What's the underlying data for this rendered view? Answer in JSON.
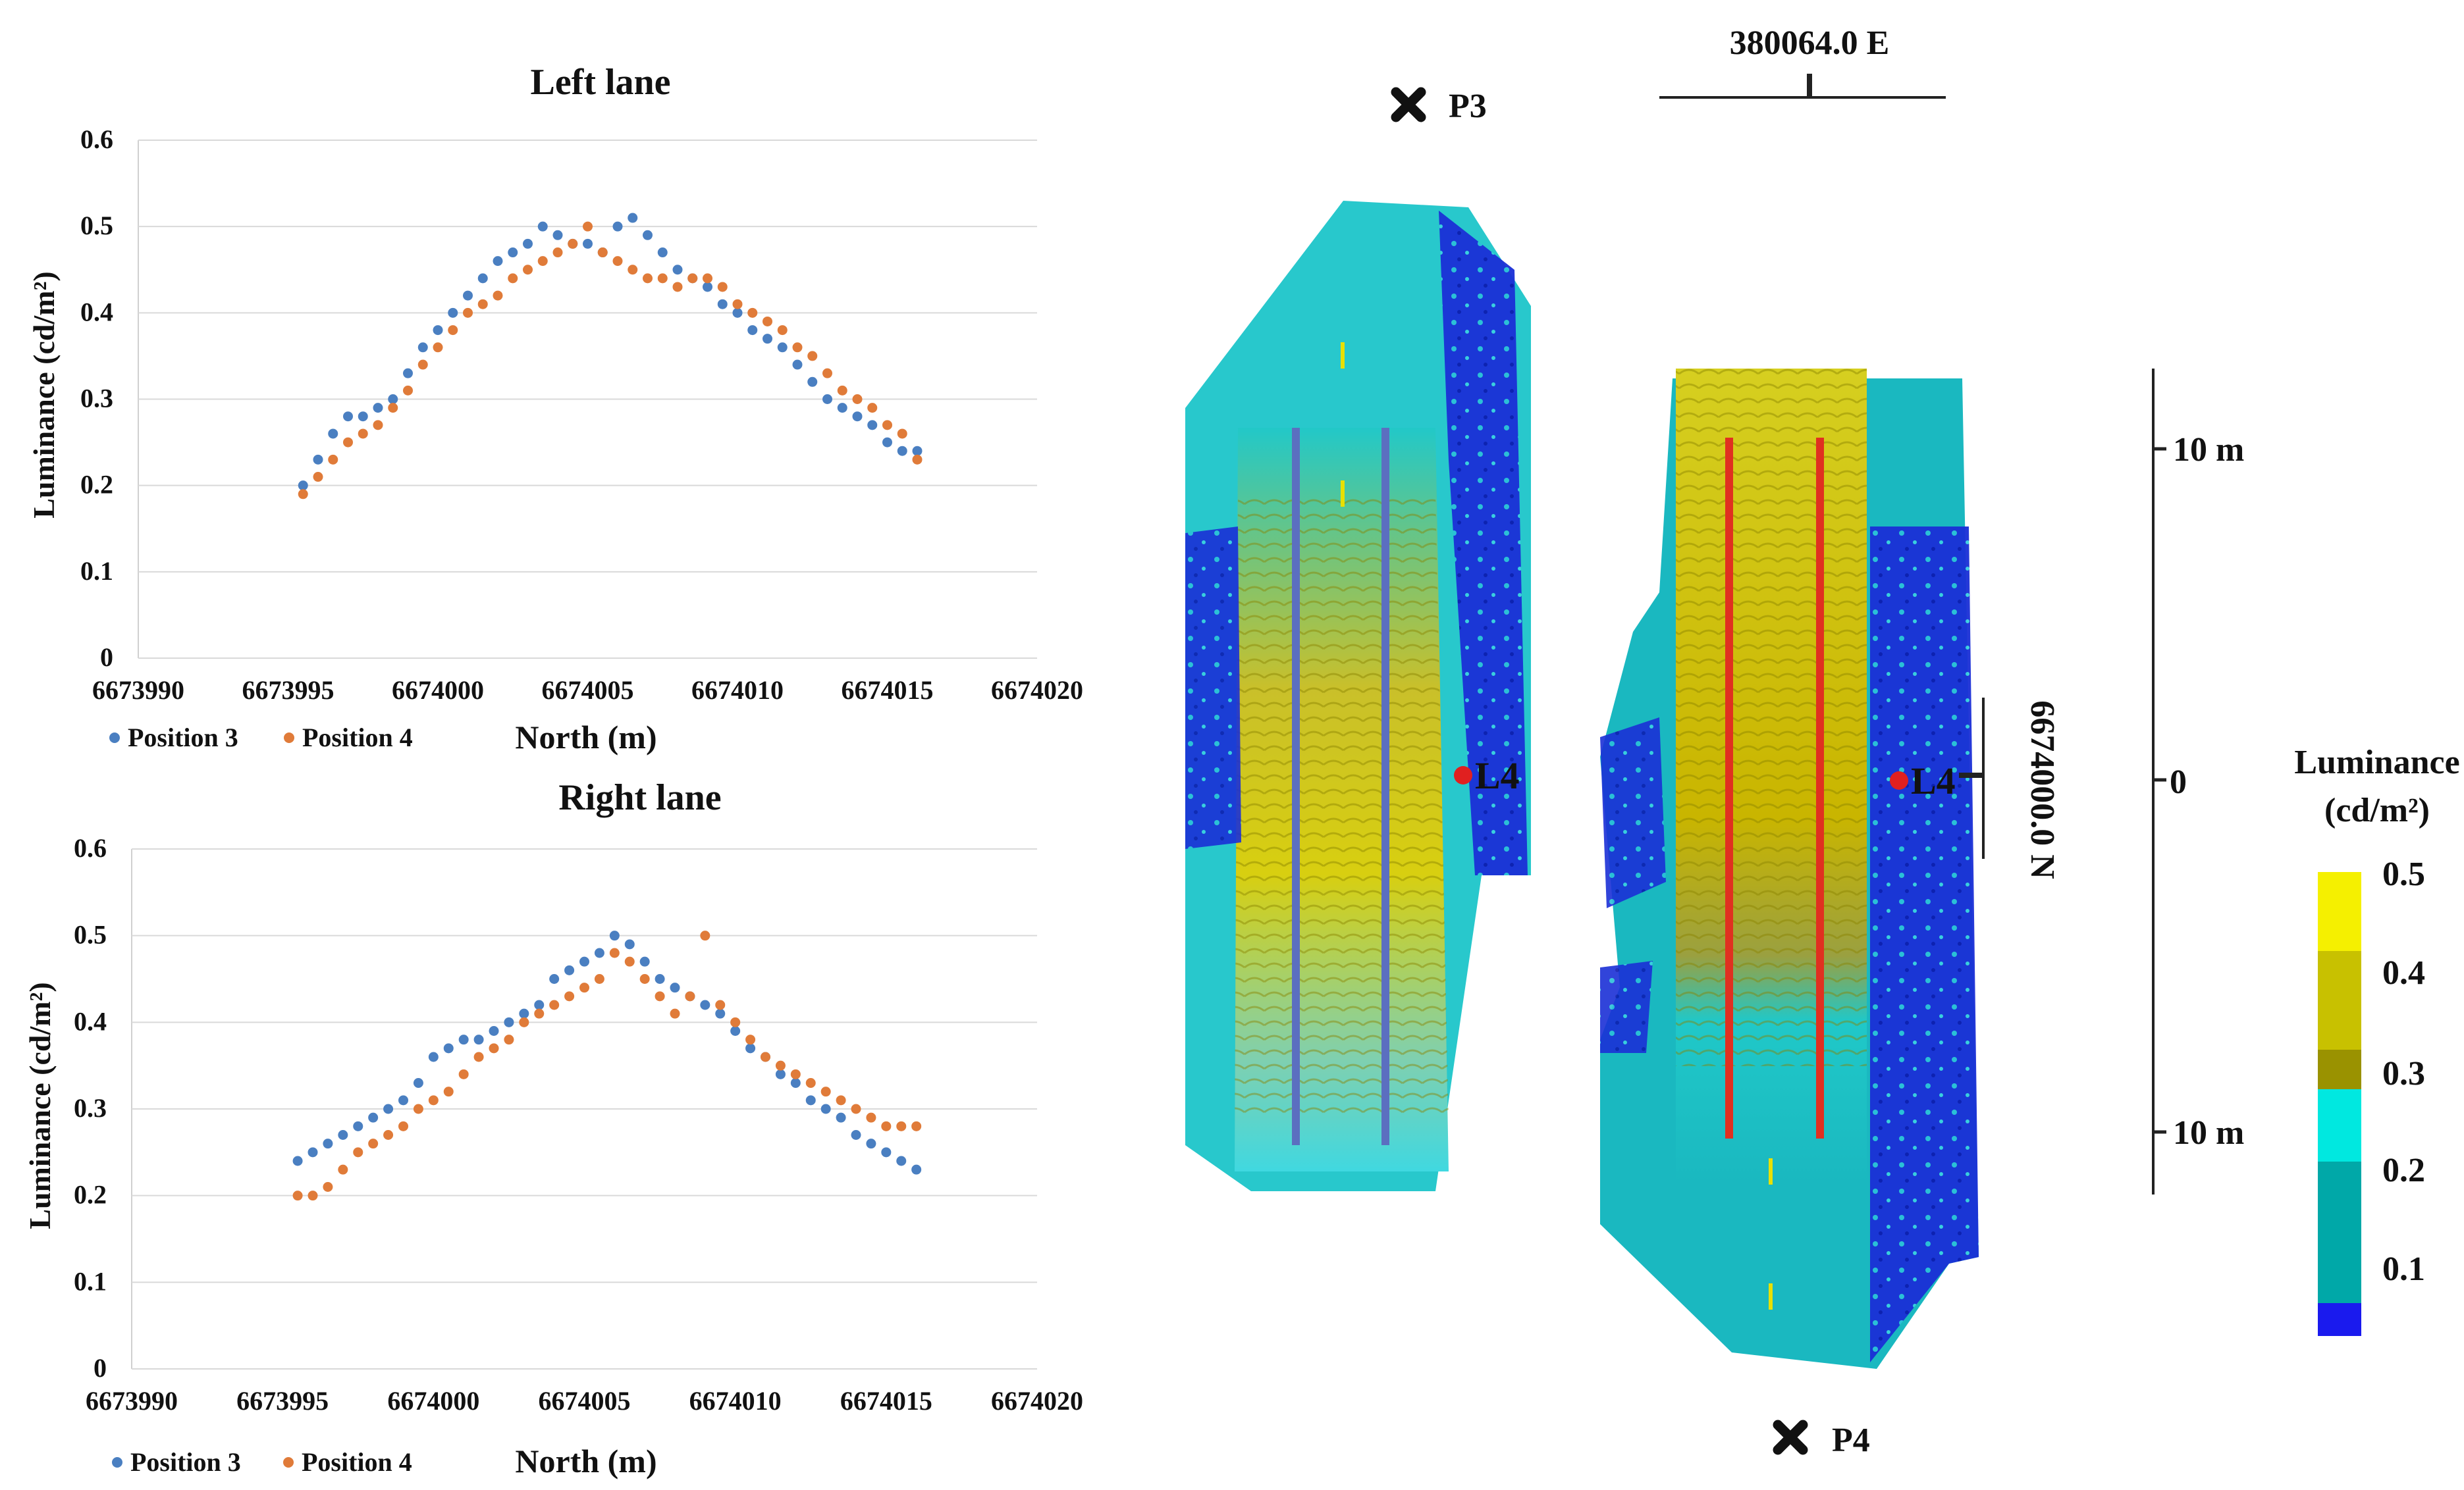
{
  "chart_data": [
    {
      "type": "scatter",
      "title": "Left lane",
      "xlabel": "North (m)",
      "ylabel": "Luminance (cd/m²)",
      "xlim": [
        6673990,
        6674020
      ],
      "ylim": [
        0,
        0.6
      ],
      "xticks": [
        "6673990",
        "6673995",
        "6674000",
        "6674005",
        "6674010",
        "6674015",
        "6674020"
      ],
      "yticks": [
        "0",
        "0.1",
        "0.2",
        "0.3",
        "0.4",
        "0.5",
        "0.6"
      ],
      "grid": true,
      "legend": "bottom-left",
      "series": [
        {
          "name": "Position 3",
          "color": "#4a7fc1",
          "x": [
            6673995.5,
            6673996,
            6673996.5,
            6673997,
            6673997.5,
            6673998,
            6673998.5,
            6673999,
            6673999.5,
            6674000,
            6674000.5,
            6674001,
            6674001.5,
            6674002,
            6674002.5,
            6674003,
            6674003.5,
            6674004,
            6674004.5,
            6674005,
            6674005.5,
            6674006,
            6674006.5,
            6674007,
            6674007.5,
            6674008,
            6674008.5,
            6674009,
            6674009.5,
            6674010,
            6674010.5,
            6674011,
            6674011.5,
            6674012,
            6674012.5,
            6674013,
            6674013.5,
            6674014,
            6674014.5,
            6674015,
            6674015.5,
            6674016
          ],
          "y": [
            0.2,
            0.23,
            0.26,
            0.28,
            0.28,
            0.29,
            0.3,
            0.33,
            0.36,
            0.38,
            0.4,
            0.42,
            0.44,
            0.46,
            0.47,
            0.48,
            0.5,
            0.49,
            0.48,
            0.48,
            0.47,
            0.5,
            0.51,
            0.49,
            0.47,
            0.45,
            0.44,
            0.43,
            0.41,
            0.4,
            0.38,
            0.37,
            0.36,
            0.34,
            0.32,
            0.3,
            0.29,
            0.28,
            0.27,
            0.25,
            0.24,
            0.24
          ]
        },
        {
          "name": "Position 4",
          "color": "#e07b39",
          "x": [
            6673995.5,
            6673996,
            6673996.5,
            6673997,
            6673997.5,
            6673998,
            6673998.5,
            6673999,
            6673999.5,
            6674000,
            6674000.5,
            6674001,
            6674001.5,
            6674002,
            6674002.5,
            6674003,
            6674003.5,
            6674004,
            6674004.5,
            6674005,
            6674005.5,
            6674006,
            6674006.5,
            6674007,
            6674007.5,
            6674008,
            6674008.5,
            6674009,
            6674009.5,
            6674010,
            6674010.5,
            6674011,
            6674011.5,
            6674012,
            6674012.5,
            6674013,
            6674013.5,
            6674014,
            6674014.5,
            6674015,
            6674015.5,
            6674016
          ],
          "y": [
            0.19,
            0.21,
            0.23,
            0.25,
            0.26,
            0.27,
            0.29,
            0.31,
            0.34,
            0.36,
            0.38,
            0.4,
            0.41,
            0.42,
            0.44,
            0.45,
            0.46,
            0.47,
            0.48,
            0.5,
            0.47,
            0.46,
            0.45,
            0.44,
            0.44,
            0.43,
            0.44,
            0.44,
            0.43,
            0.41,
            0.4,
            0.39,
            0.38,
            0.36,
            0.35,
            0.33,
            0.31,
            0.3,
            0.29,
            0.27,
            0.26,
            0.23
          ]
        }
      ]
    },
    {
      "type": "scatter",
      "title": "Right lane",
      "xlabel": "North (m)",
      "ylabel": "Luminance (cd/m²)",
      "xlim": [
        6673990,
        6674020
      ],
      "ylim": [
        0,
        0.6
      ],
      "xticks": [
        "6673990",
        "6673995",
        "6674000",
        "6674005",
        "6674010",
        "6674015",
        "6674020"
      ],
      "yticks": [
        "0",
        "0.1",
        "0.2",
        "0.3",
        "0.4",
        "0.5",
        "0.6"
      ],
      "grid": true,
      "legend": "bottom-left",
      "series": [
        {
          "name": "Position 3",
          "color": "#4a7fc1",
          "x": [
            6673995.5,
            6673996,
            6673996.5,
            6673997,
            6673997.5,
            6673998,
            6673998.5,
            6673999,
            6673999.5,
            6674000,
            6674000.5,
            6674001,
            6674001.5,
            6674002,
            6674002.5,
            6674003,
            6674003.5,
            6674004,
            6674004.5,
            6674005,
            6674005.5,
            6674006,
            6674006.5,
            6674007,
            6674007.5,
            6674008,
            6674008.5,
            6674009,
            6674009.5,
            6674010,
            6674010.5,
            6674011,
            6674011.5,
            6674012,
            6674012.5,
            6674013,
            6674013.5,
            6674014,
            6674014.5,
            6674015,
            6674015.5,
            6674016
          ],
          "y": [
            0.24,
            0.25,
            0.26,
            0.27,
            0.28,
            0.29,
            0.3,
            0.31,
            0.33,
            0.36,
            0.37,
            0.38,
            0.38,
            0.39,
            0.4,
            0.41,
            0.42,
            0.45,
            0.46,
            0.47,
            0.48,
            0.5,
            0.49,
            0.47,
            0.45,
            0.44,
            0.43,
            0.42,
            0.41,
            0.39,
            0.37,
            0.36,
            0.34,
            0.33,
            0.31,
            0.3,
            0.29,
            0.27,
            0.26,
            0.25,
            0.24,
            0.23
          ]
        },
        {
          "name": "Position 4",
          "color": "#e07b39",
          "x": [
            6673995.5,
            6673996,
            6673996.5,
            6673997,
            6673997.5,
            6673998,
            6673998.5,
            6673999,
            6673999.5,
            6674000,
            6674000.5,
            6674001,
            6674001.5,
            6674002,
            6674002.5,
            6674003,
            6674003.5,
            6674004,
            6674004.5,
            6674005,
            6674005.5,
            6674006,
            6674006.5,
            6674007,
            6674007.5,
            6674008,
            6674008.5,
            6674009,
            6674009.5,
            6674010,
            6674010.5,
            6674011,
            6674011.5,
            6674012,
            6674012.5,
            6674013,
            6674013.5,
            6674014,
            6674014.5,
            6674015,
            6674015.5,
            6674016
          ],
          "y": [
            0.2,
            0.2,
            0.21,
            0.23,
            0.25,
            0.26,
            0.27,
            0.28,
            0.3,
            0.31,
            0.32,
            0.34,
            0.36,
            0.37,
            0.38,
            0.4,
            0.41,
            0.42,
            0.43,
            0.44,
            0.45,
            0.48,
            0.47,
            0.45,
            0.43,
            0.41,
            0.43,
            0.5,
            0.42,
            0.4,
            0.38,
            0.36,
            0.35,
            0.34,
            0.33,
            0.32,
            0.31,
            0.3,
            0.29,
            0.28,
            0.28,
            0.28
          ]
        }
      ]
    }
  ],
  "map": {
    "easting_label": "380064.0 E",
    "northing_label": "6674000.0 N",
    "points": {
      "p3": "P3",
      "p4": "P4",
      "l4_left": "L4",
      "l4_right": "L4"
    },
    "scale": {
      "top": "10 m",
      "zero": "0",
      "bottom": "10 m"
    },
    "left_lane_line_color": "#5b6fc0",
    "right_lane_line_color": "#e03020"
  },
  "colorbar": {
    "title_line1": "Luminance",
    "title_line2": "(cd/m²)",
    "ticks": [
      "0.5",
      "0.4",
      "0.3",
      "0.2",
      "0.1"
    ],
    "colors": [
      "#f5f000",
      "#c8c100",
      "#9a9200",
      "#00e8e0",
      "#00a8a8",
      "#1a1aee"
    ]
  }
}
